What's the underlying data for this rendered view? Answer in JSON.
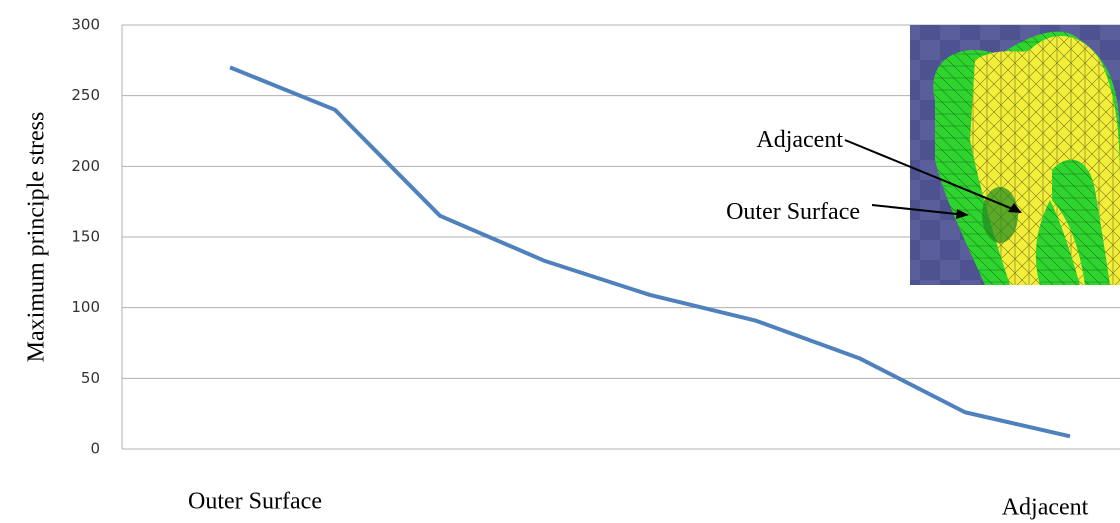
{
  "chart_data": {
    "type": "line",
    "y_label": "Maximum principle stress",
    "categories": [
      "Outer Surface",
      null,
      null,
      null,
      null,
      null,
      null,
      null,
      "Adjacent"
    ],
    "values": [
      270,
      240,
      165,
      133,
      109,
      91,
      64,
      26,
      9
    ],
    "color": "#4f81bd",
    "ylim": [
      0,
      300
    ],
    "yticks": [
      0,
      50,
      100,
      150,
      200,
      250,
      300
    ],
    "grid": true,
    "annotations": [
      "Adjacent",
      "Outer Surface"
    ]
  }
}
